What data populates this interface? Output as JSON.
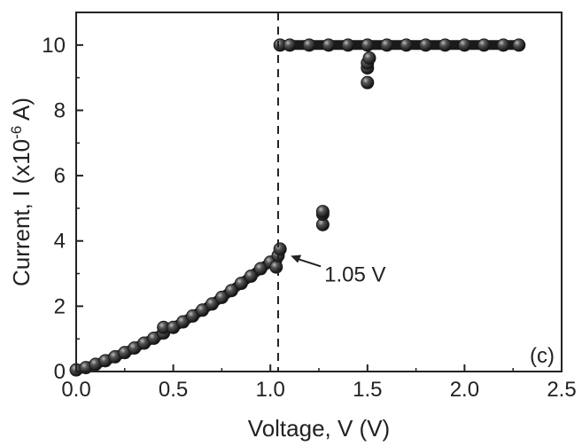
{
  "chart_data": {
    "type": "scatter",
    "xlabel": "Voltage, V (V)",
    "ylabel": "Current, I (x10-6 A)",
    "ylabel_parts": {
      "main": "Current, I (x10",
      "sup": "-6",
      "tail": " A)"
    },
    "xlim": [
      0.0,
      2.5
    ],
    "ylim": [
      0,
      11
    ],
    "x_ticks": [
      "0.0",
      "0.5",
      "1.0",
      "1.5",
      "2.0",
      "2.5"
    ],
    "y_ticks": [
      "0",
      "2",
      "4",
      "6",
      "8",
      "10"
    ],
    "grid": false,
    "panel_label": "(c)",
    "marker_color": "#1a1a1a",
    "reference_line": {
      "x": 1.04,
      "style": "dashed"
    },
    "annotation": {
      "text": "1.05 V",
      "x": 1.05,
      "y": 3.6
    },
    "series": [
      {
        "points": [
          [
            0.0,
            0.05
          ],
          [
            0.05,
            0.12
          ],
          [
            0.1,
            0.22
          ],
          [
            0.15,
            0.33
          ],
          [
            0.2,
            0.45
          ],
          [
            0.25,
            0.58
          ],
          [
            0.3,
            0.72
          ],
          [
            0.35,
            0.87
          ],
          [
            0.4,
            1.02
          ],
          [
            0.45,
            1.18
          ],
          [
            0.45,
            1.35
          ],
          [
            0.5,
            1.35
          ],
          [
            0.55,
            1.52
          ],
          [
            0.6,
            1.7
          ],
          [
            0.65,
            1.88
          ],
          [
            0.7,
            2.07
          ],
          [
            0.75,
            2.27
          ],
          [
            0.8,
            2.48
          ],
          [
            0.85,
            2.7
          ],
          [
            0.9,
            2.92
          ],
          [
            0.95,
            3.15
          ],
          [
            1.0,
            3.35
          ],
          [
            1.03,
            3.2
          ],
          [
            1.04,
            3.55
          ],
          [
            1.05,
            3.75
          ],
          [
            1.27,
            4.5
          ],
          [
            1.27,
            4.82
          ],
          [
            1.27,
            4.9
          ],
          [
            1.5,
            8.85
          ],
          [
            1.5,
            9.3
          ],
          [
            1.5,
            9.45
          ],
          [
            1.51,
            9.6
          ],
          [
            1.05,
            10.0
          ],
          [
            1.1,
            10.0
          ],
          [
            1.2,
            10.0
          ],
          [
            1.3,
            10.0
          ],
          [
            1.4,
            10.0
          ],
          [
            1.5,
            10.0
          ],
          [
            1.6,
            10.0
          ],
          [
            1.7,
            10.0
          ],
          [
            1.8,
            10.0
          ],
          [
            1.9,
            10.0
          ],
          [
            2.0,
            10.0
          ],
          [
            2.1,
            10.0
          ],
          [
            2.2,
            10.0
          ],
          [
            2.28,
            10.0
          ]
        ]
      }
    ]
  }
}
